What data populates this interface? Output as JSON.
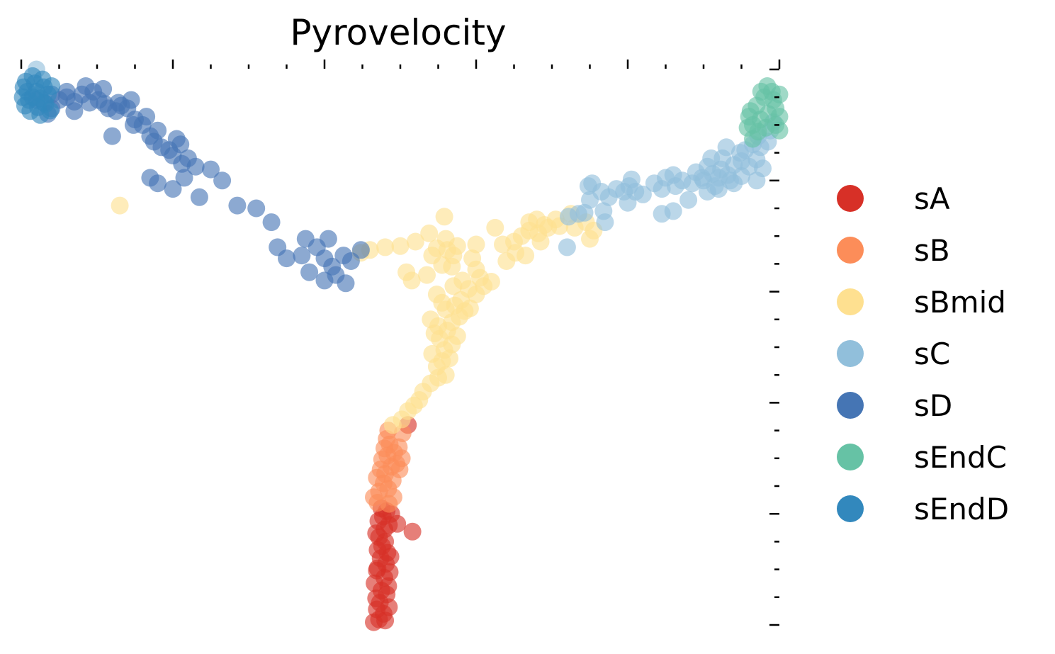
{
  "chart_data": {
    "type": "scatter",
    "title": "Pyrovelocity",
    "xlabel": "",
    "ylabel": "",
    "xlim": [
      0,
      100
    ],
    "ylim": [
      0,
      100
    ],
    "grid": false,
    "legend_position": "right",
    "x_ticks": {
      "major_count": 5,
      "minor_per_major": 4,
      "labels_shown": false
    },
    "y_ticks": {
      "major_count": 5,
      "minor_per_major": 4,
      "labels_shown": false
    },
    "series": [
      {
        "name": "sA",
        "color": "#d73027",
        "points": [
          [
            46.5,
            0.5
          ],
          [
            47.2,
            1.0
          ],
          [
            48.0,
            0.8
          ],
          [
            47.8,
            2.0
          ],
          [
            46.9,
            2.8
          ],
          [
            48.5,
            3.2
          ],
          [
            47.3,
            4.0
          ],
          [
            46.8,
            4.8
          ],
          [
            48.2,
            5.5
          ],
          [
            47.5,
            6.2
          ],
          [
            48.4,
            7.0
          ],
          [
            46.6,
            7.5
          ],
          [
            47.9,
            8.5
          ],
          [
            48.6,
            9.5
          ],
          [
            47.0,
            10.2
          ],
          [
            48.1,
            11.0
          ],
          [
            47.4,
            12.0
          ],
          [
            48.3,
            13.0
          ],
          [
            47.6,
            14.2
          ],
          [
            48.0,
            15.0
          ],
          [
            47.2,
            15.8
          ],
          [
            46.8,
            16.5
          ],
          [
            47.9,
            17.2
          ],
          [
            48.5,
            18.0
          ],
          [
            47.1,
            18.7
          ],
          [
            47.7,
            19.5
          ],
          [
            48.2,
            20.5
          ],
          [
            47.5,
            21.0
          ],
          [
            48.8,
            20.0
          ],
          [
            51.6,
            16.8
          ],
          [
            49.6,
            18.2
          ],
          [
            47.0,
            13.5
          ],
          [
            48.7,
            12.3
          ],
          [
            46.9,
            9.8
          ],
          [
            51.0,
            36.0
          ]
        ]
      },
      {
        "name": "sB",
        "color": "#fc8d59",
        "points": [
          [
            46.5,
            23.0
          ],
          [
            47.2,
            24.0
          ],
          [
            48.4,
            24.5
          ],
          [
            47.8,
            25.5
          ],
          [
            49.0,
            26.0
          ],
          [
            46.9,
            26.5
          ],
          [
            48.0,
            27.2
          ],
          [
            47.4,
            28.0
          ],
          [
            48.8,
            28.5
          ],
          [
            49.5,
            29.0
          ],
          [
            47.6,
            29.8
          ],
          [
            48.3,
            30.5
          ],
          [
            49.2,
            31.0
          ],
          [
            47.9,
            31.8
          ],
          [
            48.6,
            32.5
          ],
          [
            49.8,
            32.0
          ],
          [
            48.2,
            33.5
          ],
          [
            50.2,
            30.0
          ],
          [
            47.0,
            22.0
          ],
          [
            49.1,
            23.0
          ],
          [
            48.5,
            21.8
          ],
          [
            49.9,
            28.0
          ],
          [
            48.4,
            35.0
          ],
          [
            50.3,
            34.5
          ]
        ]
      },
      {
        "name": "sBmid",
        "color": "#fee090",
        "points": [
          [
            49.0,
            36.0
          ],
          [
            50.2,
            37.0
          ],
          [
            51.0,
            38.5
          ],
          [
            51.8,
            39.5
          ],
          [
            52.5,
            40.5
          ],
          [
            53.0,
            42.0
          ],
          [
            54.0,
            43.5
          ],
          [
            55.0,
            44.5
          ],
          [
            56.0,
            45.0
          ],
          [
            54.8,
            46.5
          ],
          [
            55.5,
            47.5
          ],
          [
            56.5,
            48.0
          ],
          [
            54.2,
            48.8
          ],
          [
            55.8,
            49.5
          ],
          [
            56.8,
            50.5
          ],
          [
            55.2,
            51.5
          ],
          [
            54.5,
            52.5
          ],
          [
            56.2,
            53.0
          ],
          [
            57.5,
            52.0
          ],
          [
            55.0,
            53.8
          ],
          [
            56.8,
            54.5
          ],
          [
            54.0,
            55.0
          ],
          [
            57.8,
            55.5
          ],
          [
            58.5,
            56.5
          ],
          [
            56.0,
            56.8
          ],
          [
            57.2,
            57.5
          ],
          [
            59.2,
            57.0
          ],
          [
            55.5,
            58.0
          ],
          [
            58.0,
            58.5
          ],
          [
            54.8,
            59.5
          ],
          [
            60.0,
            59.5
          ],
          [
            59.0,
            60.5
          ],
          [
            61.0,
            61.0
          ],
          [
            60.5,
            62.5
          ],
          [
            58.2,
            62.0
          ],
          [
            57.0,
            61.0
          ],
          [
            62.0,
            61.8
          ],
          [
            60.0,
            64.0
          ],
          [
            59.5,
            66.0
          ],
          [
            57.0,
            66.5
          ],
          [
            56.8,
            64.5
          ],
          [
            56.2,
            67.5
          ],
          [
            54.8,
            67.8
          ],
          [
            54.2,
            66.5
          ],
          [
            57.5,
            68.2
          ],
          [
            56.0,
            69.5
          ],
          [
            53.5,
            63.0
          ],
          [
            51.5,
            62.0
          ],
          [
            50.8,
            63.5
          ],
          [
            55.5,
            64.8
          ],
          [
            53.8,
            70.5
          ],
          [
            64.0,
            65.5
          ],
          [
            65.0,
            69.0
          ],
          [
            66.0,
            70.0
          ],
          [
            67.0,
            71.0
          ],
          [
            68.2,
            70.5
          ],
          [
            69.5,
            71.5
          ],
          [
            70.5,
            73.0
          ],
          [
            71.0,
            71.8
          ],
          [
            72.5,
            74.0
          ],
          [
            67.0,
            72.5
          ],
          [
            68.0,
            73.0
          ],
          [
            69.0,
            72.0
          ],
          [
            73.0,
            71.5
          ],
          [
            74.5,
            72.5
          ],
          [
            75.0,
            69.5
          ],
          [
            75.5,
            71.0
          ],
          [
            68.5,
            69.0
          ],
          [
            63.5,
            68.5
          ],
          [
            62.5,
            71.5
          ],
          [
            65.2,
            67.0
          ],
          [
            46.0,
            67.5
          ],
          [
            48.0,
            68.0
          ],
          [
            50.0,
            68.2
          ],
          [
            52.0,
            69.0
          ],
          [
            44.8,
            67.0
          ],
          [
            13.0,
            75.5
          ],
          [
            55.8,
            73.5
          ],
          [
            60.0,
            68.5
          ],
          [
            66.5,
            66.5
          ]
        ]
      },
      {
        "name": "sC",
        "color": "#91bfdb",
        "points": [
          [
            72.0,
            68.0
          ],
          [
            72.2,
            73.5
          ],
          [
            73.5,
            74.0
          ],
          [
            74.3,
            74.2
          ],
          [
            75.0,
            76.5
          ],
          [
            74.8,
            79.0
          ],
          [
            75.3,
            79.5
          ],
          [
            76.8,
            74.5
          ],
          [
            77.0,
            72.5
          ],
          [
            76.5,
            78.0
          ],
          [
            77.5,
            77.0
          ],
          [
            78.5,
            78.5
          ],
          [
            79.5,
            78.0
          ],
          [
            80.2,
            79.0
          ],
          [
            80.0,
            76.0
          ],
          [
            82.0,
            77.5
          ],
          [
            83.5,
            79.5
          ],
          [
            84.5,
            78.5
          ],
          [
            85.0,
            80.5
          ],
          [
            86.0,
            81.0
          ],
          [
            87.2,
            80.0
          ],
          [
            88.5,
            79.5
          ],
          [
            89.0,
            81.5
          ],
          [
            90.0,
            80.0
          ],
          [
            90.5,
            82.5
          ],
          [
            91.2,
            81.2
          ],
          [
            92.3,
            82.0
          ],
          [
            93.2,
            81.0
          ],
          [
            94.0,
            82.8
          ],
          [
            95.0,
            83.5
          ],
          [
            96.0,
            82.5
          ],
          [
            97.0,
            83.8
          ],
          [
            97.8,
            82.2
          ],
          [
            92.5,
            84.0
          ],
          [
            94.8,
            85.0
          ],
          [
            93.0,
            86.0
          ],
          [
            95.5,
            85.5
          ],
          [
            96.5,
            86.5
          ],
          [
            97.5,
            86.0
          ],
          [
            98.5,
            87.0
          ],
          [
            97.2,
            88.0
          ],
          [
            98.8,
            89.0
          ],
          [
            99.2,
            90.5
          ],
          [
            88.0,
            76.5
          ],
          [
            90.5,
            78.0
          ],
          [
            92.0,
            78.5
          ],
          [
            94.0,
            79.5
          ],
          [
            84.5,
            74.0
          ],
          [
            86.3,
            79.0
          ],
          [
            80.5,
            80.2
          ],
          [
            81.0,
            78.0
          ],
          [
            2.0,
            100.0
          ],
          [
            86.0,
            74.5
          ],
          [
            91.0,
            84.0
          ],
          [
            92.0,
            80.5
          ],
          [
            93.5,
            80.0
          ],
          [
            95.0,
            80.8
          ],
          [
            97.0,
            80.0
          ],
          [
            89.8,
            80.5
          ],
          [
            91.5,
            79.0
          ]
        ]
      },
      {
        "name": "sD",
        "color": "#4575b4",
        "points": [
          [
            2.0,
            94.5
          ],
          [
            3.0,
            94.0
          ],
          [
            4.0,
            95.5
          ],
          [
            5.0,
            94.5
          ],
          [
            6.0,
            95.0
          ],
          [
            7.0,
            94.2
          ],
          [
            8.0,
            95.5
          ],
          [
            9.0,
            94.0
          ],
          [
            9.5,
            96.0
          ],
          [
            8.5,
            97.0
          ],
          [
            10.2,
            94.5
          ],
          [
            11.0,
            93.8
          ],
          [
            11.5,
            93.0
          ],
          [
            12.5,
            92.5
          ],
          [
            13.2,
            93.5
          ],
          [
            14.0,
            93.0
          ],
          [
            15.0,
            91.0
          ],
          [
            16.0,
            90.0
          ],
          [
            17.0,
            88.0
          ],
          [
            17.5,
            87.0
          ],
          [
            18.0,
            89.0
          ],
          [
            18.5,
            86.0
          ],
          [
            19.5,
            85.5
          ],
          [
            20.0,
            84.5
          ],
          [
            20.5,
            87.5
          ],
          [
            21.0,
            86.5
          ],
          [
            21.2,
            83.0
          ],
          [
            22.0,
            84.0
          ],
          [
            23.0,
            82.5
          ],
          [
            20.0,
            78.5
          ],
          [
            18.0,
            79.5
          ],
          [
            17.0,
            80.5
          ],
          [
            21.5,
            80.5
          ],
          [
            25.0,
            82.0
          ],
          [
            26.5,
            80.0
          ],
          [
            23.5,
            77.0
          ],
          [
            28.5,
            75.5
          ],
          [
            31.0,
            75.0
          ],
          [
            33.0,
            72.5
          ],
          [
            33.8,
            68.0
          ],
          [
            35.0,
            66.0
          ],
          [
            37.0,
            66.5
          ],
          [
            37.5,
            69.5
          ],
          [
            39.0,
            68.0
          ],
          [
            40.5,
            69.5
          ],
          [
            40.0,
            66.0
          ],
          [
            41.0,
            64.5
          ],
          [
            42.5,
            66.5
          ],
          [
            41.5,
            63.0
          ],
          [
            40.0,
            62.0
          ],
          [
            42.8,
            61.5
          ],
          [
            43.5,
            65.5
          ],
          [
            44.8,
            67.5
          ],
          [
            38.0,
            63.5
          ],
          [
            16.5,
            91.5
          ],
          [
            12.0,
            88.0
          ],
          [
            14.8,
            90.0
          ],
          [
            6.0,
            96.0
          ],
          [
            4.0,
            93.0
          ],
          [
            3.5,
            92.0
          ],
          [
            7.0,
            92.5
          ],
          [
            10.8,
            96.5
          ],
          [
            12.8,
            94.0
          ],
          [
            14.5,
            94.5
          ]
        ]
      },
      {
        "name": "sEndC",
        "color": "#66c2a5",
        "points": [
          [
            96.5,
            90.0
          ],
          [
            97.5,
            91.0
          ],
          [
            98.5,
            92.0
          ],
          [
            99.5,
            93.0
          ],
          [
            100.0,
            91.5
          ],
          [
            99.2,
            94.5
          ],
          [
            98.0,
            95.0
          ],
          [
            97.0,
            93.5
          ],
          [
            96.2,
            92.5
          ],
          [
            100.0,
            95.5
          ],
          [
            99.0,
            96.0
          ],
          [
            98.4,
            97.0
          ],
          [
            97.6,
            96.0
          ],
          [
            99.5,
            90.0
          ],
          [
            98.2,
            89.5
          ],
          [
            97.2,
            88.8
          ],
          [
            96.5,
            87.5
          ],
          [
            100.0,
            89.0
          ],
          [
            95.8,
            89.5
          ],
          [
            96.0,
            91.5
          ]
        ]
      },
      {
        "name": "sEndD",
        "color": "#3288bd",
        "points": [
          [
            0.5,
            93.5
          ],
          [
            1.0,
            94.5
          ],
          [
            1.5,
            95.0
          ],
          [
            2.0,
            96.0
          ],
          [
            2.5,
            94.8
          ],
          [
            3.0,
            96.8
          ],
          [
            0.8,
            96.0
          ],
          [
            1.8,
            97.5
          ],
          [
            3.5,
            95.5
          ],
          [
            0.2,
            95.0
          ],
          [
            2.2,
            93.2
          ],
          [
            1.2,
            92.5
          ],
          [
            3.2,
            93.8
          ],
          [
            0.6,
            97.8
          ],
          [
            2.8,
            98.2
          ],
          [
            4.0,
            97.0
          ],
          [
            1.5,
            98.8
          ],
          [
            0.3,
            96.8
          ],
          [
            2.5,
            91.8
          ],
          [
            3.8,
            92.6
          ]
        ]
      }
    ]
  }
}
